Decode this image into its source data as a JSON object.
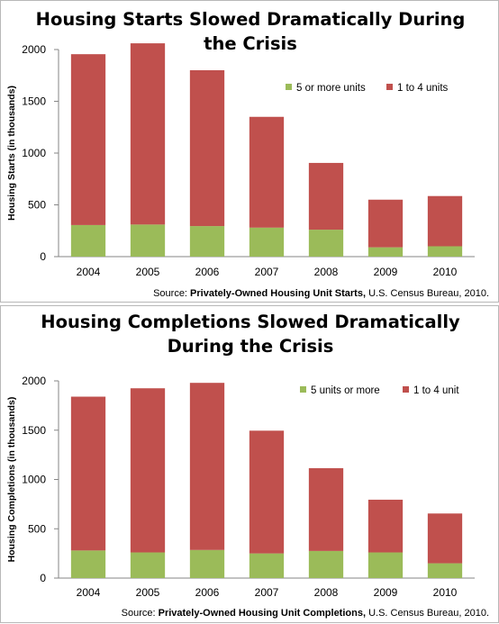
{
  "colors": {
    "multi": "#9bbb59",
    "single": "#c0504d",
    "axis": "#868686",
    "text": "#000000"
  },
  "chart_data": [
    {
      "type": "bar",
      "stacked": true,
      "title_lines": [
        "Housing Starts Slowed Dramatically During",
        "the Crisis"
      ],
      "xlabel": "",
      "ylabel": "Housing Starts (in thousands)",
      "categories": [
        "2004",
        "2005",
        "2006",
        "2007",
        "2008",
        "2009",
        "2010"
      ],
      "yticks": [
        "0",
        "500",
        "1000",
        "1500",
        "2000"
      ],
      "ylim": [
        0,
        2000
      ],
      "legend_position": "upper-right",
      "series": [
        {
          "name": "5 or more units",
          "color": "#9bbb59",
          "values": [
            305,
            310,
            295,
            280,
            260,
            90,
            100
          ]
        },
        {
          "name": "1 to 4 units",
          "color": "#c0504d",
          "values": [
            1650,
            1750,
            1505,
            1070,
            645,
            460,
            485
          ]
        }
      ],
      "source": {
        "prefix": "Source: ",
        "bold": "Privately-Owned Housing Unit Starts,",
        "suffix": " U.S. Census Bureau, 2010."
      }
    },
    {
      "type": "bar",
      "stacked": true,
      "title_lines": [
        "Housing Completions Slowed Dramatically",
        "During the Crisis"
      ],
      "xlabel": "",
      "ylabel": "Housing Completions (in thousands)",
      "categories": [
        "2004",
        "2005",
        "2006",
        "2007",
        "2008",
        "2009",
        "2010"
      ],
      "yticks": [
        "0",
        "500",
        "1000",
        "1500",
        "2000"
      ],
      "ylim": [
        0,
        2000
      ],
      "legend_position": "upper-right",
      "series": [
        {
          "name": "5 units or more",
          "color": "#9bbb59",
          "values": [
            280,
            260,
            285,
            250,
            275,
            260,
            150
          ]
        },
        {
          "name": "1 to 4 unit",
          "color": "#c0504d",
          "values": [
            1560,
            1665,
            1695,
            1245,
            840,
            535,
            505
          ]
        }
      ],
      "source": {
        "prefix": "Source: ",
        "bold": "Privately-Owned Housing Unit Completions,",
        "suffix": " U.S. Census Bureau, 2010."
      }
    }
  ]
}
